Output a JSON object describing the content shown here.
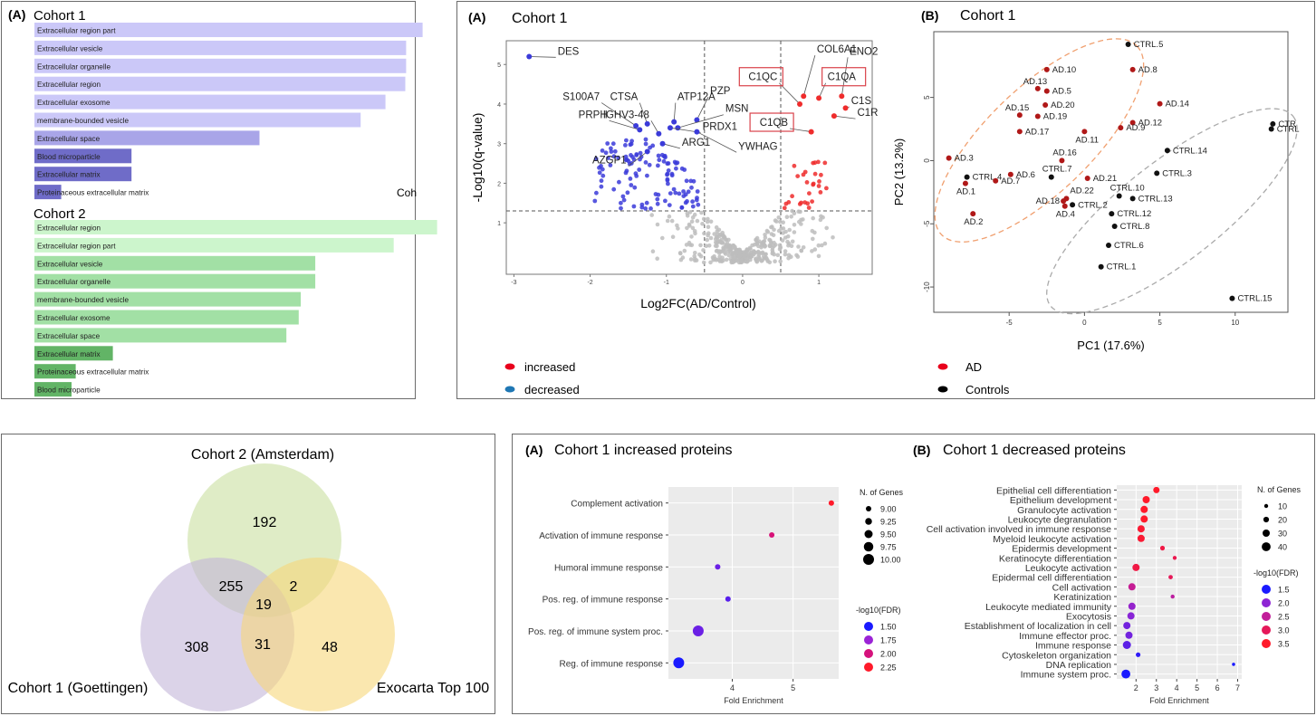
{
  "go_panel": {
    "label": "(A)",
    "truncated_text": "Coh",
    "cohort1": {
      "title": "Cohort 1",
      "terms": [
        {
          "term": "Extracellular region part",
          "value": 0.94,
          "level": 0
        },
        {
          "term": "Extracellular vesicle",
          "value": 0.9,
          "level": 0
        },
        {
          "term": "Extracellular organelle",
          "value": 0.9,
          "level": 0
        },
        {
          "term": "Extracellular region",
          "value": 0.898,
          "level": 0
        },
        {
          "term": "Extracellular exosome",
          "value": 0.85,
          "level": 0
        },
        {
          "term": "membrane-bounded vesicle",
          "value": 0.79,
          "level": 0
        },
        {
          "term": "Extracellular space",
          "value": 0.545,
          "level": 1
        },
        {
          "term": "Blood microparticle",
          "value": 0.235,
          "level": 2
        },
        {
          "term": "Extracellular matrix",
          "value": 0.235,
          "level": 2
        },
        {
          "term": "Proteinaceous extracellular matrix",
          "value": 0.065,
          "level": 2
        }
      ]
    },
    "cohort2": {
      "title": "Cohort 2",
      "terms": [
        {
          "term": "Extracellular region",
          "value": 0.975,
          "level": 0
        },
        {
          "term": "Extracellular region part",
          "value": 0.87,
          "level": 0
        },
        {
          "term": "Extracellular vesicle",
          "value": 0.68,
          "level": 1
        },
        {
          "term": "Extracellular organelle",
          "value": 0.68,
          "level": 1
        },
        {
          "term": "membrane-bounded vesicle",
          "value": 0.645,
          "level": 1
        },
        {
          "term": "Extracellular exosome",
          "value": 0.64,
          "level": 1
        },
        {
          "term": "Extracellular space",
          "value": 0.61,
          "level": 1
        },
        {
          "term": "Extracellular matrix",
          "value": 0.19,
          "level": 2
        },
        {
          "term": "Proteinaceous extracellular matrix",
          "value": 0.1,
          "level": 2
        },
        {
          "term": "Blood microparticle",
          "value": 0.09,
          "level": 2
        }
      ]
    }
  },
  "volcano": {
    "label": "(A)",
    "title": "Cohort 1",
    "xlabel": "Log2FC(AD/Control)",
    "ylabel": "-Log10(q-value)",
    "xticks": [
      "-3",
      "-2",
      "-1",
      "0",
      "1"
    ],
    "yticks": [
      "1",
      "2",
      "3",
      "4",
      "5"
    ],
    "legend": [
      {
        "label": "increased",
        "color": "#e8001c"
      },
      {
        "label": "decreased",
        "color": "#1f77b4"
      }
    ],
    "labels": [
      {
        "text": "DES",
        "x": -2.8,
        "y": 5.2,
        "lx": -2.45,
        "ly": 5.25
      },
      {
        "text": "S100A7",
        "x": -1.4,
        "y": 3.45,
        "lx": -1.85,
        "ly": 4.1
      },
      {
        "text": "CTSA",
        "x": -1.25,
        "y": 3.5,
        "lx": -1.35,
        "ly": 4.1
      },
      {
        "text": "ATP12A",
        "x": -0.9,
        "y": 3.55,
        "lx": -0.88,
        "ly": 4.1
      },
      {
        "text": "PZP",
        "x": -0.6,
        "y": 3.6,
        "lx": -0.45,
        "ly": 4.25
      },
      {
        "text": "PRPH",
        "x": -1.35,
        "y": 3.35,
        "lx": -1.75,
        "ly": 3.65
      },
      {
        "text": "IGHV3-48",
        "x": -1.1,
        "y": 3.25,
        "lx": -1.2,
        "ly": 3.65
      },
      {
        "text": "MSN",
        "x": -0.85,
        "y": 3.4,
        "lx": -0.25,
        "ly": 3.8
      },
      {
        "text": "PRDX1",
        "x": -0.95,
        "y": 3.4,
        "lx": -0.55,
        "ly": 3.35
      },
      {
        "text": "ARG1",
        "x": -1.05,
        "y": 3.0,
        "lx": -0.82,
        "ly": 2.95
      },
      {
        "text": "YWHAG",
        "x": -0.6,
        "y": 3.3,
        "lx": -0.08,
        "ly": 2.85
      },
      {
        "text": "AZGP1",
        "x": -1.25,
        "y": 2.8,
        "lx": -1.5,
        "ly": 2.5
      },
      {
        "text": "COL6A1",
        "x": 0.8,
        "y": 4.2,
        "lx": 0.95,
        "ly": 5.3
      },
      {
        "text": "ENO2",
        "x": 1.3,
        "y": 4.2,
        "lx": 1.38,
        "ly": 5.25
      },
      {
        "text": "C1QC",
        "x": 0.75,
        "y": 4.0,
        "lx": 0.48,
        "ly": 4.6
      },
      {
        "text": "C1QA",
        "x": 1.0,
        "y": 4.15,
        "lx": 1.09,
        "ly": 4.6
      },
      {
        "text": "C1S",
        "x": 1.35,
        "y": 3.9,
        "lx": 1.4,
        "ly": 4.0
      },
      {
        "text": "C1R",
        "x": 1.2,
        "y": 3.7,
        "lx": 1.48,
        "ly": 3.7
      },
      {
        "text": "C1QB",
        "x": 0.9,
        "y": 3.3,
        "lx": 0.62,
        "ly": 3.45
      }
    ]
  },
  "pca": {
    "label": "(B)",
    "title": "Cohort 1",
    "xlabel": "PC1 (17.6%)",
    "ylabel": "PC2 (13.2%)",
    "xticks": [
      "-5",
      "0",
      "5",
      "10"
    ],
    "yticks": [
      "5",
      "0",
      "-5",
      "-10"
    ],
    "legend": [
      {
        "label": "AD",
        "color": "#e8001c"
      },
      {
        "label": "Controls",
        "color": "#000000"
      }
    ],
    "points": [
      {
        "name": "CTRL.5",
        "x": 2.9,
        "y": 9.2,
        "group": "ctrl",
        "pos": "r"
      },
      {
        "name": "AD.10",
        "x": -2.5,
        "y": 7.2,
        "group": "ad",
        "pos": "r"
      },
      {
        "name": "AD.8",
        "x": 3.2,
        "y": 7.2,
        "group": "ad",
        "pos": "r"
      },
      {
        "name": "AD.13",
        "x": -3.1,
        "y": 5.7,
        "group": "ad",
        "pos": "tl"
      },
      {
        "name": "AD.5",
        "x": -2.5,
        "y": 5.5,
        "group": "ad",
        "pos": "r"
      },
      {
        "name": "AD.15",
        "x": -4.3,
        "y": 3.6,
        "group": "ad",
        "pos": "tl"
      },
      {
        "name": "AD.20",
        "x": -2.6,
        "y": 4.4,
        "group": "ad",
        "pos": "r"
      },
      {
        "name": "AD.14",
        "x": 5.0,
        "y": 4.5,
        "group": "ad",
        "pos": "r"
      },
      {
        "name": "AD.19",
        "x": -3.1,
        "y": 3.5,
        "group": "ad",
        "pos": "r"
      },
      {
        "name": "AD.12",
        "x": 3.2,
        "y": 3.0,
        "group": "ad",
        "pos": "r"
      },
      {
        "name": "AD.9",
        "x": 2.4,
        "y": 2.6,
        "group": "ad",
        "pos": "r"
      },
      {
        "name": "AD.17",
        "x": -4.3,
        "y": 2.3,
        "group": "ad",
        "pos": "r"
      },
      {
        "name": "AD.11",
        "x": 0.0,
        "y": 2.3,
        "group": "ad",
        "pos": "b"
      },
      {
        "name": "CTR",
        "x": 12.5,
        "y": 2.9,
        "group": "ctrl",
        "pos": "r"
      },
      {
        "name": "CTRL",
        "x": 12.4,
        "y": 2.5,
        "group": "ctrl",
        "pos": "r"
      },
      {
        "name": "CTRL.14",
        "x": 5.5,
        "y": 0.8,
        "group": "ctrl",
        "pos": "r"
      },
      {
        "name": "AD.3",
        "x": -9.0,
        "y": 0.2,
        "group": "ad",
        "pos": "r"
      },
      {
        "name": "AD.16",
        "x": -1.5,
        "y": 0.0,
        "group": "ad",
        "pos": "t"
      },
      {
        "name": "CTRL.4",
        "x": -7.8,
        "y": -1.3,
        "group": "ctrl",
        "pos": "r"
      },
      {
        "name": "AD.6",
        "x": -4.9,
        "y": -1.1,
        "group": "ad",
        "pos": "r"
      },
      {
        "name": "CTRL.7",
        "x": -2.2,
        "y": -1.3,
        "group": "ctrl",
        "pos": "t"
      },
      {
        "name": "AD.21",
        "x": 0.2,
        "y": -1.4,
        "group": "ad",
        "pos": "r"
      },
      {
        "name": "CTRL.3",
        "x": 4.8,
        "y": -1.0,
        "group": "ctrl",
        "pos": "r"
      },
      {
        "name": "AD.1",
        "x": -7.9,
        "y": -1.8,
        "group": "ad",
        "pos": "b"
      },
      {
        "name": "AD.7",
        "x": -5.9,
        "y": -1.6,
        "group": "ad",
        "pos": "r"
      },
      {
        "name": "CTRL.10",
        "x": 2.3,
        "y": -2.8,
        "group": "ctrl",
        "pos": "t"
      },
      {
        "name": "AD.22",
        "x": -1.2,
        "y": -3.0,
        "group": "ad",
        "pos": "tr"
      },
      {
        "name": "AD.18",
        "x": -1.4,
        "y": -3.2,
        "group": "ad",
        "pos": "l"
      },
      {
        "name": "CTRL.13",
        "x": 3.2,
        "y": -3.0,
        "group": "ctrl",
        "pos": "r"
      },
      {
        "name": "CTRL.2",
        "x": -0.8,
        "y": -3.5,
        "group": "ctrl",
        "pos": "r"
      },
      {
        "name": "AD.4",
        "x": -1.3,
        "y": -3.6,
        "group": "ad",
        "pos": "b"
      },
      {
        "name": "CTRL.12",
        "x": 1.8,
        "y": -4.2,
        "group": "ctrl",
        "pos": "r"
      },
      {
        "name": "AD.2",
        "x": -7.4,
        "y": -4.2,
        "group": "ad",
        "pos": "b"
      },
      {
        "name": "CTRL.8",
        "x": 2.0,
        "y": -5.2,
        "group": "ctrl",
        "pos": "r"
      },
      {
        "name": "CTRL.6",
        "x": 1.6,
        "y": -6.7,
        "group": "ctrl",
        "pos": "r"
      },
      {
        "name": "CTRL.1",
        "x": 1.1,
        "y": -8.4,
        "group": "ctrl",
        "pos": "r"
      },
      {
        "name": "CTRL.15",
        "x": 9.8,
        "y": -10.9,
        "group": "ctrl",
        "pos": "r"
      }
    ]
  },
  "venn": {
    "sets": [
      {
        "name": "Cohort 2 (Amsterdam)",
        "color": "#c9dfa0"
      },
      {
        "name": "Cohort 1 (Goettingen)",
        "color": "#c3b6d8"
      },
      {
        "name": "Exocarta Top 100",
        "color": "#f7d77a"
      }
    ],
    "regions": [
      {
        "id": "only-cohort2",
        "count": "192"
      },
      {
        "id": "only-cohort1",
        "count": "308"
      },
      {
        "id": "only-exocarta",
        "count": "48"
      },
      {
        "id": "cohort1-cohort2",
        "count": "255"
      },
      {
        "id": "cohort2-exocarta",
        "count": "2"
      },
      {
        "id": "cohort1-exocarta",
        "count": "31"
      },
      {
        "id": "all-three",
        "count": "19"
      }
    ]
  },
  "enrich_a": {
    "label": "(A)",
    "title": "Cohort 1 increased proteins",
    "xlabel": "Fold Enrichment",
    "xticks": [
      "4",
      "5"
    ],
    "size_legend_title": "N. of Genes",
    "size_legend": [
      "9.00",
      "9.25",
      "9.50",
      "9.75",
      "10.00"
    ],
    "color_legend_title": "-log10(FDR)",
    "color_legend": [
      "1.50",
      "1.75",
      "2.00",
      "2.25"
    ],
    "terms": [
      {
        "term": "Complement activation",
        "fe": 5.63,
        "genes": 9,
        "fdr": 2.35
      },
      {
        "term": "Activation of immune response",
        "fe": 4.65,
        "genes": 9,
        "fdr": 2.05
      },
      {
        "term": "Humoral immune response",
        "fe": 3.76,
        "genes": 9,
        "fdr": 1.6
      },
      {
        "term": "Pos. reg. of immune response",
        "fe": 3.93,
        "genes": 9,
        "fdr": 1.55
      },
      {
        "term": "Pos. reg. of immune system proc.",
        "fe": 3.44,
        "genes": 10,
        "fdr": 1.6
      },
      {
        "term": "Reg. of immune response",
        "fe": 3.12,
        "genes": 10,
        "fdr": 1.4
      }
    ]
  },
  "enrich_b": {
    "label": "(B)",
    "title": "Cohort 1 decreased proteins",
    "xlabel": "Fold Enrichment",
    "xticks": [
      "2",
      "3",
      "4",
      "5",
      "6",
      "7"
    ],
    "size_legend_title": "N. of Genes",
    "size_legend": [
      "10",
      "20",
      "30",
      "40"
    ],
    "color_legend_title": "-log10(FDR)",
    "color_legend": [
      "1.5",
      "2.0",
      "2.5",
      "3.0",
      "3.5"
    ],
    "terms": [
      {
        "term": "Epithelial cell differentiation",
        "fe": 3.0,
        "genes": 25,
        "fdr": 3.6
      },
      {
        "term": "Epithelium development",
        "fe": 2.5,
        "genes": 30,
        "fdr": 3.6
      },
      {
        "term": "Granulocyte activation",
        "fe": 2.4,
        "genes": 30,
        "fdr": 3.6
      },
      {
        "term": "Leukocyte degranulation",
        "fe": 2.4,
        "genes": 30,
        "fdr": 3.6
      },
      {
        "term": "Cell activation involved in immune response",
        "fe": 2.25,
        "genes": 30,
        "fdr": 3.5
      },
      {
        "term": "Myeloid leukocyte activation",
        "fe": 2.25,
        "genes": 30,
        "fdr": 3.5
      },
      {
        "term": "Epidermis development",
        "fe": 3.3,
        "genes": 15,
        "fdr": 3.3
      },
      {
        "term": "Keratinocyte differentiation",
        "fe": 3.9,
        "genes": 10,
        "fdr": 3.2
      },
      {
        "term": "Leukocyte activation",
        "fe": 2.0,
        "genes": 30,
        "fdr": 3.3
      },
      {
        "term": "Epidermal cell differentiation",
        "fe": 3.7,
        "genes": 12,
        "fdr": 3.1
      },
      {
        "term": "Cell activation",
        "fe": 1.8,
        "genes": 30,
        "fdr": 2.6
      },
      {
        "term": "Keratinization",
        "fe": 3.8,
        "genes": 10,
        "fdr": 2.5
      },
      {
        "term": "Leukocyte mediated immunity",
        "fe": 1.8,
        "genes": 30,
        "fdr": 2.1
      },
      {
        "term": "Exocytosis",
        "fe": 1.75,
        "genes": 30,
        "fdr": 2.0
      },
      {
        "term": "Establishment of localization in cell",
        "fe": 1.55,
        "genes": 30,
        "fdr": 1.9
      },
      {
        "term": "Immune effector proc.",
        "fe": 1.65,
        "genes": 30,
        "fdr": 1.9
      },
      {
        "term": "Immune response",
        "fe": 1.55,
        "genes": 35,
        "fdr": 1.8
      },
      {
        "term": "Cytoskeleton organization",
        "fe": 2.1,
        "genes": 15,
        "fdr": 1.6
      },
      {
        "term": "DNA replication",
        "fe": 6.8,
        "genes": 5,
        "fdr": 1.5
      },
      {
        "term": "Immune system proc.",
        "fe": 1.5,
        "genes": 40,
        "fdr": 1.5
      }
    ]
  },
  "chart_data": [
    {
      "type": "bar",
      "title": "Cohort 1",
      "categories": [
        "Extracellular region part",
        "Extracellular vesicle",
        "Extracellular organelle",
        "Extracellular region",
        "Extracellular exosome",
        "membrane-bounded vesicle",
        "Extracellular space",
        "Blood microparticle",
        "Extracellular matrix",
        "Proteinaceous extracellular matrix"
      ],
      "values": [
        0.94,
        0.9,
        0.9,
        0.898,
        0.85,
        0.79,
        0.545,
        0.235,
        0.235,
        0.065
      ],
      "orientation": "horizontal"
    },
    {
      "type": "bar",
      "title": "Cohort 2",
      "categories": [
        "Extracellular region",
        "Extracellular region part",
        "Extracellular vesicle",
        "Extracellular organelle",
        "membrane-bounded vesicle",
        "Extracellular exosome",
        "Extracellular space",
        "Extracellular matrix",
        "Proteinaceous extracellular matrix",
        "Blood microparticle"
      ],
      "values": [
        0.975,
        0.87,
        0.68,
        0.68,
        0.645,
        0.64,
        0.61,
        0.19,
        0.1,
        0.09
      ],
      "orientation": "horizontal"
    },
    {
      "type": "scatter",
      "title": "Cohort 1",
      "xlabel": "Log2FC(AD/Control)",
      "ylabel": "-Log10(q-value)",
      "xlim": [
        -3.1,
        1.7
      ],
      "ylim": [
        -0.3,
        5.6
      ],
      "thresholds": {
        "x": [
          -0.5,
          0.5
        ],
        "y": 1.3
      }
    },
    {
      "type": "scatter",
      "title": "Cohort 1",
      "xlabel": "PC1 (17.6%)",
      "ylabel": "PC2 (13.2%)",
      "xlim": [
        -10,
        13.5
      ],
      "ylim": [
        -12,
        10.2
      ]
    },
    {
      "type": "scatter",
      "title": "Cohort 1 increased proteins",
      "xlabel": "Fold Enrichment",
      "xlim": [
        2.95,
        5.75
      ]
    },
    {
      "type": "scatter",
      "title": "Cohort 1 decreased proteins",
      "xlabel": "Fold Enrichment",
      "xlim": [
        1.05,
        7.2
      ]
    }
  ]
}
